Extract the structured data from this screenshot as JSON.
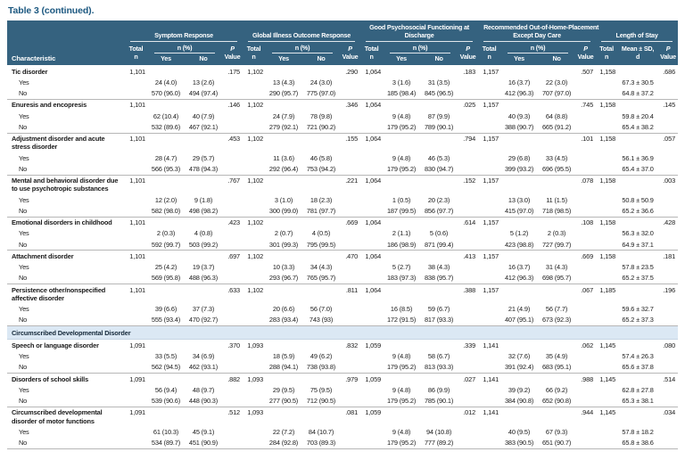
{
  "title": "Table 3 (continued).",
  "header": {
    "characteristic": "Characteristic",
    "total": "Total",
    "n": "n",
    "n_pct": "n (%)",
    "yes": "Yes",
    "no": "No",
    "p": "P",
    "value": "Value",
    "mean_line1": "Mean ± SD,",
    "mean_line2": "d",
    "groups": [
      [
        "Symptom Response"
      ],
      [
        "Global Illness Outcome Response"
      ],
      [
        "Good Psychosocial Functioning at",
        "Discharge"
      ],
      [
        "Recommended Out-of-Home-Placement",
        "Except Day Care"
      ],
      [
        "Length of Stay"
      ]
    ]
  },
  "rows": [
    {
      "kind": "disorder",
      "label": "Tic disorder",
      "n": [
        "1,101",
        "1,102",
        "1,064",
        "1,157",
        "1,158"
      ],
      "p": [
        ".175",
        ".290",
        ".183",
        ".507",
        ".686"
      ]
    },
    {
      "kind": "level",
      "label": "Yes",
      "cells": [
        "24 (4.0)",
        "13 (2.6)",
        "13 (4.3)",
        "24 (3.0)",
        "3 (1.6)",
        "31 (3.5)",
        "16 (3.7)",
        "22 (3.0)"
      ],
      "mean": "67.3 ± 30.5"
    },
    {
      "kind": "level",
      "label": "No",
      "cells": [
        "570 (96.0)",
        "494 (97.4)",
        "290 (95.7)",
        "775 (97.0)",
        "185 (98.4)",
        "845 (96.5)",
        "412 (96.3)",
        "707 (97.0)"
      ],
      "mean": "64.8 ± 37.2"
    },
    {
      "kind": "disorder",
      "label": "Enuresis and encopresis",
      "n": [
        "1,101",
        "1,102",
        "1,064",
        "1,157",
        "1,158"
      ],
      "p": [
        ".146",
        ".346",
        ".025",
        ".745",
        ".145"
      ]
    },
    {
      "kind": "level",
      "label": "Yes",
      "cells": [
        "62 (10.4)",
        "40 (7.9)",
        "24 (7.9)",
        "78 (9.8)",
        "9 (4.8)",
        "87 (9.9)",
        "40 (9.3)",
        "64 (8.8)"
      ],
      "mean": "59.8 ± 20.4"
    },
    {
      "kind": "level",
      "label": "No",
      "cells": [
        "532 (89.6)",
        "467 (92.1)",
        "279 (92.1)",
        "721 (90.2)",
        "179 (95.2)",
        "789 (90.1)",
        "388 (90.7)",
        "665 (91.2)"
      ],
      "mean": "65.4 ± 38.2"
    },
    {
      "kind": "disorder",
      "label": "Adjustment disorder and acute stress disorder",
      "n": [
        "1,101",
        "1,102",
        "1,064",
        "1,157",
        "1,158"
      ],
      "p": [
        ".453",
        ".155",
        ".794",
        ".101",
        ".057"
      ]
    },
    {
      "kind": "level",
      "label": "Yes",
      "cells": [
        "28 (4.7)",
        "29 (5.7)",
        "11 (3.6)",
        "46 (5.8)",
        "9 (4.8)",
        "46 (5.3)",
        "29 (6.8)",
        "33 (4.5)"
      ],
      "mean": "56.1 ± 36.9"
    },
    {
      "kind": "level",
      "label": "No",
      "cells": [
        "566 (95.3)",
        "478 (94.3)",
        "292 (96.4)",
        "753 (94.2)",
        "179 (95.2)",
        "830 (94.7)",
        "399 (93.2)",
        "696 (95.5)"
      ],
      "mean": "65.4 ± 37.0"
    },
    {
      "kind": "disorder",
      "label": "Mental and behavioral disorder due to use psychotropic substances",
      "n": [
        "1,101",
        "1,102",
        "1,064",
        "1,157",
        "1,158"
      ],
      "p": [
        ".767",
        ".221",
        ".152",
        ".078",
        ".003"
      ]
    },
    {
      "kind": "level",
      "label": "Yes",
      "cells": [
        "12 (2.0)",
        "9 (1.8)",
        "3 (1.0)",
        "18 (2.3)",
        "1 (0.5)",
        "20 (2.3)",
        "13 (3.0)",
        "11 (1.5)"
      ],
      "mean": "50.8 ± 50.9"
    },
    {
      "kind": "level",
      "label": "No",
      "cells": [
        "582 (98.0)",
        "498 (98.2)",
        "300 (99.0)",
        "781 (97.7)",
        "187 (99.5)",
        "856 (97.7)",
        "415 (97.0)",
        "718 (98.5)"
      ],
      "mean": "65.2 ± 36.6"
    },
    {
      "kind": "disorder",
      "label": "Emotional disorders in childhood",
      "n": [
        "1,101",
        "1,102",
        "1,064",
        "1,157",
        "1,158"
      ],
      "p": [
        ".423",
        ".669",
        ".614",
        ".108",
        ".428"
      ]
    },
    {
      "kind": "level",
      "label": "Yes",
      "cells": [
        "2 (0.3)",
        "4 (0.8)",
        "2 (0.7)",
        "4 (0.5)",
        "2 (1.1)",
        "5 (0.6)",
        "5 (1.2)",
        "2 (0.3)"
      ],
      "mean": "56.3 ± 32.0"
    },
    {
      "kind": "level",
      "label": "No",
      "cells": [
        "592 (99.7)",
        "503 (99.2)",
        "301 (99.3)",
        "795 (99.5)",
        "186 (98.9)",
        "871 (99.4)",
        "423 (98.8)",
        "727 (99.7)"
      ],
      "mean": "64.9 ± 37.1"
    },
    {
      "kind": "disorder",
      "label": "Attachment disorder",
      "n": [
        "1,101",
        "1,102",
        "1,064",
        "1,157",
        "1,158"
      ],
      "p": [
        ".697",
        ".470",
        ".413",
        ".669",
        ".181"
      ]
    },
    {
      "kind": "level",
      "label": "Yes",
      "cells": [
        "25 (4.2)",
        "19 (3.7)",
        "10 (3.3)",
        "34 (4.3)",
        "5 (2.7)",
        "38 (4.3)",
        "16 (3.7)",
        "31 (4.3)"
      ],
      "mean": "57.8 ± 23.5"
    },
    {
      "kind": "level",
      "label": "No",
      "cells": [
        "569 (95.8)",
        "488 (96.3)",
        "293 (96.7)",
        "765 (95.7)",
        "183 (97.3)",
        "838 (95.7)",
        "412 (96.3)",
        "698 (95.7)"
      ],
      "mean": "65.2 ± 37.5"
    },
    {
      "kind": "disorder",
      "label": "Persistence other/nonspecified affective disorder",
      "n": [
        "1,101",
        "1,102",
        "1,064",
        "1,157",
        "1,185"
      ],
      "p": [
        ".633",
        ".811",
        ".388",
        ".067",
        ".196"
      ]
    },
    {
      "kind": "level",
      "label": "Yes",
      "cells": [
        "39 (6.6)",
        "37 (7.3)",
        "20 (6.6)",
        "56 (7.0)",
        "16 (8.5)",
        "59 (6.7)",
        "21 (4.9)",
        "56 (7.7)"
      ],
      "mean": "59.6 ± 32.7"
    },
    {
      "kind": "level",
      "label": "No",
      "cells": [
        "555 (93.4)",
        "470 (92.7)",
        "283 (93.4)",
        "743 (93)",
        "172 (91.5)",
        "817 (93.3)",
        "407 (95.1)",
        "673 (92.3)"
      ],
      "mean": "65.2 ± 37.3"
    },
    {
      "kind": "section",
      "label": "Circumscribed Developmental Disorder"
    },
    {
      "kind": "disorder",
      "label": "Speech or language disorder",
      "n": [
        "1,091",
        "1,093",
        "1,059",
        "1,141",
        "1,145"
      ],
      "p": [
        ".370",
        ".832",
        ".339",
        ".062",
        ".080"
      ]
    },
    {
      "kind": "level",
      "label": "Yes",
      "cells": [
        "33 (5.5)",
        "34 (6.9)",
        "18 (5.9)",
        "49 (6.2)",
        "9 (4.8)",
        "58 (6.7)",
        "32 (7.6)",
        "35 (4.9)"
      ],
      "mean": "57.4 ± 26.3"
    },
    {
      "kind": "level",
      "label": "No",
      "cells": [
        "562 (94.5)",
        "462 (93.1)",
        "288 (94.1)",
        "738 (93.8)",
        "179 (95.2)",
        "813 (93.3)",
        "391 (92.4)",
        "683 (95.1)"
      ],
      "mean": "65.6 ± 37.8"
    },
    {
      "kind": "disorder",
      "label": "Disorders of school skills",
      "n": [
        "1,091",
        "1,093",
        "1,059",
        "1,141",
        "1,145"
      ],
      "p": [
        ".882",
        ".979",
        ".027",
        ".988",
        ".514"
      ]
    },
    {
      "kind": "level",
      "label": "Yes",
      "cells": [
        "56 (9.4)",
        "48 (9.7)",
        "29 (9.5)",
        "75 (9.5)",
        "9 (4.8)",
        "86 (9.9)",
        "39 (9.2)",
        "66 (9.2)"
      ],
      "mean": "62.8 ± 27.8"
    },
    {
      "kind": "level",
      "label": "No",
      "cells": [
        "539 (90.6)",
        "448 (90.3)",
        "277 (90.5)",
        "712 (90.5)",
        "179 (95.2)",
        "785 (90.1)",
        "384 (90.8)",
        "652 (90.8)"
      ],
      "mean": "65.3 ± 38.1"
    },
    {
      "kind": "disorder",
      "label": "Circumscribed developmental disorder of motor functions",
      "n": [
        "1,091",
        "1,093",
        "1,059",
        "1,141",
        "1,145"
      ],
      "p": [
        ".512",
        ".081",
        ".012",
        ".944",
        ".034"
      ]
    },
    {
      "kind": "level",
      "label": "Yes",
      "cells": [
        "61 (10.3)",
        "45 (9.1)",
        "22 (7.2)",
        "84 (10.7)",
        "9 (4.8)",
        "94 (10.8)",
        "40 (9.5)",
        "67 (9.3)"
      ],
      "mean": "57.8 ± 18.2"
    },
    {
      "kind": "level",
      "label": "No",
      "cells": [
        "534 (89.7)",
        "451 (90.9)",
        "284 (92.8)",
        "703 (89.3)",
        "179 (95.2)",
        "777 (89.2)",
        "383 (90.5)",
        "651 (90.7)"
      ],
      "mean": "65.8 ± 38.6"
    }
  ]
}
